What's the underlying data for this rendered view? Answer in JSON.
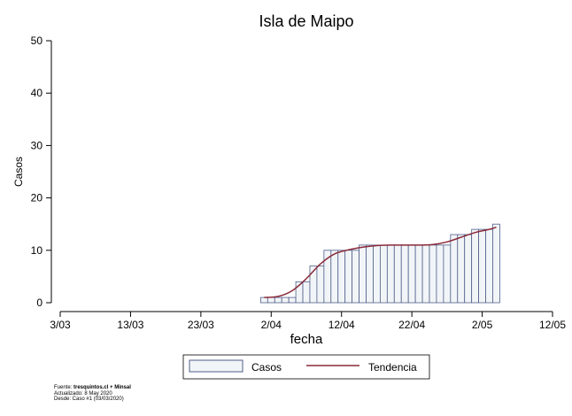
{
  "chart_data": {
    "type": "bar",
    "title": "Isla de Maipo",
    "xlabel": "fecha",
    "ylabel": "Casos",
    "ylim": [
      0,
      50
    ],
    "yticks": [
      0,
      10,
      20,
      30,
      40,
      50
    ],
    "xticks": [
      {
        "date": "2020-03-03",
        "label": "3/03"
      },
      {
        "date": "2020-03-13",
        "label": "13/03"
      },
      {
        "date": "2020-03-23",
        "label": "23/03"
      },
      {
        "date": "2020-04-02",
        "label": "2/04"
      },
      {
        "date": "2020-04-12",
        "label": "12/04"
      },
      {
        "date": "2020-04-22",
        "label": "22/04"
      },
      {
        "date": "2020-05-02",
        "label": "2/05"
      },
      {
        "date": "2020-05-12",
        "label": "12/05"
      }
    ],
    "xlim": [
      "2020-03-03",
      "2020-05-12"
    ],
    "series": [
      {
        "name": "Casos",
        "kind": "bar",
        "color": "#f2f5f8",
        "edge": "#4f5f8a",
        "points": [
          [
            "2020-04-01",
            1
          ],
          [
            "2020-04-02",
            1
          ],
          [
            "2020-04-03",
            1
          ],
          [
            "2020-04-04",
            1
          ],
          [
            "2020-04-05",
            1
          ],
          [
            "2020-04-06",
            4
          ],
          [
            "2020-04-07",
            4
          ],
          [
            "2020-04-08",
            7
          ],
          [
            "2020-04-09",
            7
          ],
          [
            "2020-04-10",
            10
          ],
          [
            "2020-04-11",
            10
          ],
          [
            "2020-04-12",
            10
          ],
          [
            "2020-04-13",
            10
          ],
          [
            "2020-04-14",
            10
          ],
          [
            "2020-04-15",
            11
          ],
          [
            "2020-04-16",
            11
          ],
          [
            "2020-04-17",
            11
          ],
          [
            "2020-04-18",
            11
          ],
          [
            "2020-04-19",
            11
          ],
          [
            "2020-04-20",
            11
          ],
          [
            "2020-04-21",
            11
          ],
          [
            "2020-04-22",
            11
          ],
          [
            "2020-04-23",
            11
          ],
          [
            "2020-04-24",
            11
          ],
          [
            "2020-04-25",
            11
          ],
          [
            "2020-04-26",
            11
          ],
          [
            "2020-04-27",
            11
          ],
          [
            "2020-04-28",
            13
          ],
          [
            "2020-04-29",
            13
          ],
          [
            "2020-04-30",
            13
          ],
          [
            "2020-05-01",
            14
          ],
          [
            "2020-05-02",
            14
          ],
          [
            "2020-05-03",
            14
          ],
          [
            "2020-05-04",
            15
          ]
        ]
      },
      {
        "name": "Tendencia",
        "kind": "line",
        "color": "#8b2a3a",
        "points": [
          [
            "2020-04-01",
            1.0
          ],
          [
            "2020-04-03",
            1.2
          ],
          [
            "2020-04-05",
            2.3
          ],
          [
            "2020-04-07",
            4.6
          ],
          [
            "2020-04-09",
            7.4
          ],
          [
            "2020-04-11",
            9.3
          ],
          [
            "2020-04-13",
            10.1
          ],
          [
            "2020-04-15",
            10.6
          ],
          [
            "2020-04-17",
            10.9
          ],
          [
            "2020-04-19",
            11.0
          ],
          [
            "2020-04-21",
            11.0
          ],
          [
            "2020-04-23",
            11.0
          ],
          [
            "2020-04-25",
            11.1
          ],
          [
            "2020-04-27",
            11.6
          ],
          [
            "2020-04-29",
            12.5
          ],
          [
            "2020-05-01",
            13.4
          ],
          [
            "2020-05-03",
            14.0
          ],
          [
            "2020-05-04",
            14.4
          ]
        ]
      }
    ],
    "grid": false,
    "legend": "bottom-center"
  },
  "footnote": {
    "source_label": "Fuente: ",
    "source_value": "tresquintos.cl + Minsal",
    "updated": "Actualizado: 8 May 2020",
    "since": "Desde: Caso #1  (03/03/2020)"
  }
}
